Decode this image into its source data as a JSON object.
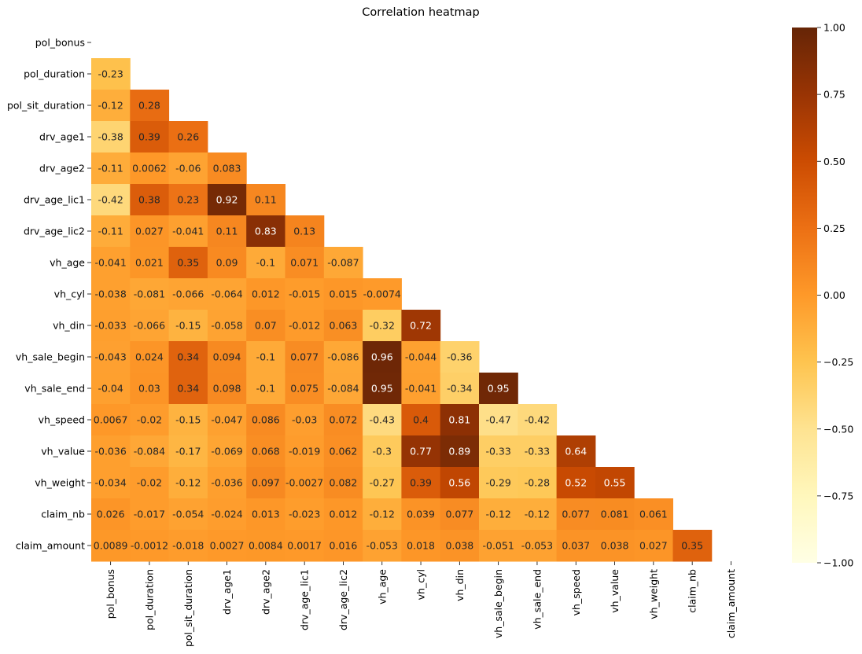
{
  "chart_data": {
    "type": "heatmap",
    "title": "Correlation heatmap",
    "mask": "upper-triangle-and-diagonal",
    "colormap": "YlOrBr",
    "color_range": [
      -1.0,
      1.0
    ],
    "colorbar_ticks": [
      "1.00",
      "0.75",
      "0.50",
      "0.25",
      "0.00",
      "−0.25",
      "−0.50",
      "−0.75",
      "−1.00"
    ],
    "colorbar_tick_values": [
      1.0,
      0.75,
      0.5,
      0.25,
      0.0,
      -0.25,
      -0.5,
      -0.75,
      -1.0
    ],
    "variables": [
      "pol_bonus",
      "pol_duration",
      "pol_sit_duration",
      "drv_age1",
      "drv_age2",
      "drv_age_lic1",
      "drv_age_lic2",
      "vh_age",
      "vh_cyl",
      "vh_din",
      "vh_sale_begin",
      "vh_sale_end",
      "vh_speed",
      "vh_value",
      "vh_weight",
      "claim_nb",
      "claim_amount"
    ],
    "values": [
      [],
      [
        -0.23
      ],
      [
        -0.12,
        0.28
      ],
      [
        -0.38,
        0.39,
        0.26
      ],
      [
        -0.11,
        0.0062,
        -0.06,
        0.083
      ],
      [
        -0.42,
        0.38,
        0.23,
        0.92,
        0.11
      ],
      [
        -0.11,
        0.027,
        -0.041,
        0.11,
        0.83,
        0.13
      ],
      [
        -0.041,
        0.021,
        0.35,
        0.09,
        -0.1,
        0.071,
        -0.087
      ],
      [
        -0.038,
        -0.081,
        -0.066,
        -0.064,
        0.012,
        -0.015,
        0.015,
        -0.0074
      ],
      [
        -0.033,
        -0.066,
        -0.15,
        -0.058,
        0.07,
        -0.012,
        0.063,
        -0.32,
        0.72
      ],
      [
        -0.043,
        0.024,
        0.34,
        0.094,
        -0.1,
        0.077,
        -0.086,
        0.96,
        -0.044,
        -0.36
      ],
      [
        -0.04,
        0.03,
        0.34,
        0.098,
        -0.1,
        0.075,
        -0.084,
        0.95,
        -0.041,
        -0.34,
        0.95
      ],
      [
        0.0067,
        -0.02,
        -0.15,
        -0.047,
        0.086,
        -0.03,
        0.072,
        -0.43,
        0.4,
        0.81,
        -0.47,
        -0.42
      ],
      [
        -0.036,
        -0.084,
        -0.17,
        -0.069,
        0.068,
        -0.019,
        0.062,
        -0.3,
        0.77,
        0.89,
        -0.33,
        -0.33,
        0.64
      ],
      [
        -0.034,
        -0.02,
        -0.12,
        -0.036,
        0.097,
        -0.0027,
        0.082,
        -0.27,
        0.39,
        0.56,
        -0.29,
        -0.28,
        0.52,
        0.55
      ],
      [
        0.026,
        -0.017,
        -0.054,
        -0.024,
        0.013,
        -0.023,
        0.012,
        -0.12,
        0.039,
        0.077,
        -0.12,
        -0.12,
        0.077,
        0.081,
        0.061
      ],
      [
        0.0089,
        -0.0012,
        -0.018,
        0.0027,
        0.0084,
        0.0017,
        0.016,
        -0.053,
        0.018,
        0.038,
        -0.051,
        -0.053,
        0.037,
        0.038,
        0.027,
        0.35
      ]
    ],
    "labels": [
      [],
      [
        "-0.23"
      ],
      [
        "-0.12",
        "0.28"
      ],
      [
        "-0.38",
        "0.39",
        "0.26"
      ],
      [
        "-0.11",
        "0.0062",
        "-0.06",
        "0.083"
      ],
      [
        "-0.42",
        "0.38",
        "0.23",
        "0.92",
        "0.11"
      ],
      [
        "-0.11",
        "0.027",
        "-0.041",
        "0.11",
        "0.83",
        "0.13"
      ],
      [
        "-0.041",
        "0.021",
        "0.35",
        "0.09",
        "-0.1",
        "0.071",
        "-0.087"
      ],
      [
        "-0.038",
        "-0.081",
        "-0.066",
        "-0.064",
        "0.012",
        "-0.015",
        "0.015",
        "-0.0074"
      ],
      [
        "-0.033",
        "-0.066",
        "-0.15",
        "-0.058",
        "0.07",
        "-0.012",
        "0.063",
        "-0.32",
        "0.72"
      ],
      [
        "-0.043",
        "0.024",
        "0.34",
        "0.094",
        "-0.1",
        "0.077",
        "-0.086",
        "0.96",
        "-0.044",
        "-0.36"
      ],
      [
        "-0.04",
        "0.03",
        "0.34",
        "0.098",
        "-0.1",
        "0.075",
        "-0.084",
        "0.95",
        "-0.041",
        "-0.34",
        "0.95"
      ],
      [
        "0.0067",
        "-0.02",
        "-0.15",
        "-0.047",
        "0.086",
        "-0.03",
        "0.072",
        "-0.43",
        "0.4",
        "0.81",
        "-0.47",
        "-0.42"
      ],
      [
        "-0.036",
        "-0.084",
        "-0.17",
        "-0.069",
        "0.068",
        "-0.019",
        "0.062",
        "-0.3",
        "0.77",
        "0.89",
        "-0.33",
        "-0.33",
        "0.64"
      ],
      [
        "-0.034",
        "-0.02",
        "-0.12",
        "-0.036",
        "0.097",
        "-0.0027",
        "0.082",
        "-0.27",
        "0.39",
        "0.56",
        "-0.29",
        "-0.28",
        "0.52",
        "0.55"
      ],
      [
        "0.026",
        "-0.017",
        "-0.054",
        "-0.024",
        "0.013",
        "-0.023",
        "0.012",
        "-0.12",
        "0.039",
        "0.077",
        "-0.12",
        "-0.12",
        "0.077",
        "0.081",
        "0.061"
      ],
      [
        "0.0089",
        "-0.0012",
        "-0.018",
        "0.0027",
        "0.0084",
        "0.0017",
        "0.016",
        "-0.053",
        "0.018",
        "0.038",
        "-0.051",
        "-0.053",
        "0.037",
        "0.038",
        "0.027",
        "0.35"
      ]
    ],
    "grid": false,
    "legend": "colorbar-right"
  }
}
